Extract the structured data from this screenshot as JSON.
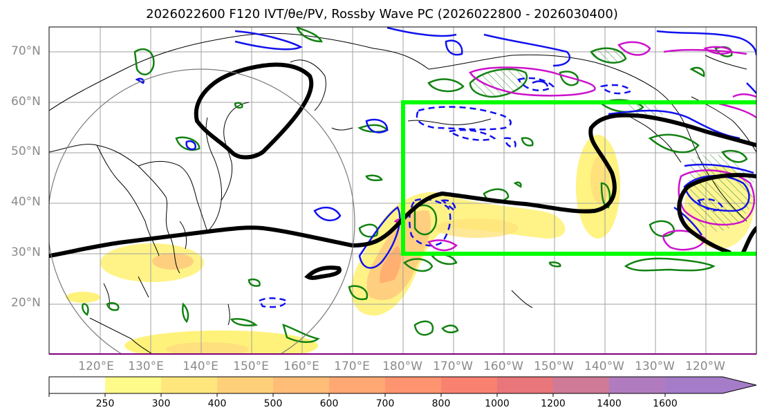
{
  "title": "2026022600 F120 IVT/θe/PV, Rossby Wave PC (2026022800 - 2026030400)",
  "lat_labels": [
    "70°N",
    "60°N",
    "50°N",
    "40°N",
    "30°N",
    "20°N"
  ],
  "lon_labels": [
    "120°E",
    "130°E",
    "140°E",
    "150°E",
    "160°E",
    "170°E",
    "180°W",
    "170°W",
    "160°W",
    "150°W",
    "140°W",
    "130°W",
    "120°W"
  ],
  "colorbar": {
    "labels": [
      "250",
      "300",
      "400",
      "500",
      "600",
      "700",
      "800",
      "1000",
      "1200",
      "1400",
      "1600"
    ],
    "colors": [
      "#fffb8a",
      "#ffe77e",
      "#ffd07a",
      "#ffbd78",
      "#ffa874",
      "#ff9470",
      "#f8826f",
      "#e8767a",
      "#cf7a97",
      "#b17cbf",
      "#a57cc8"
    ]
  },
  "box_color": "#00ff00"
}
